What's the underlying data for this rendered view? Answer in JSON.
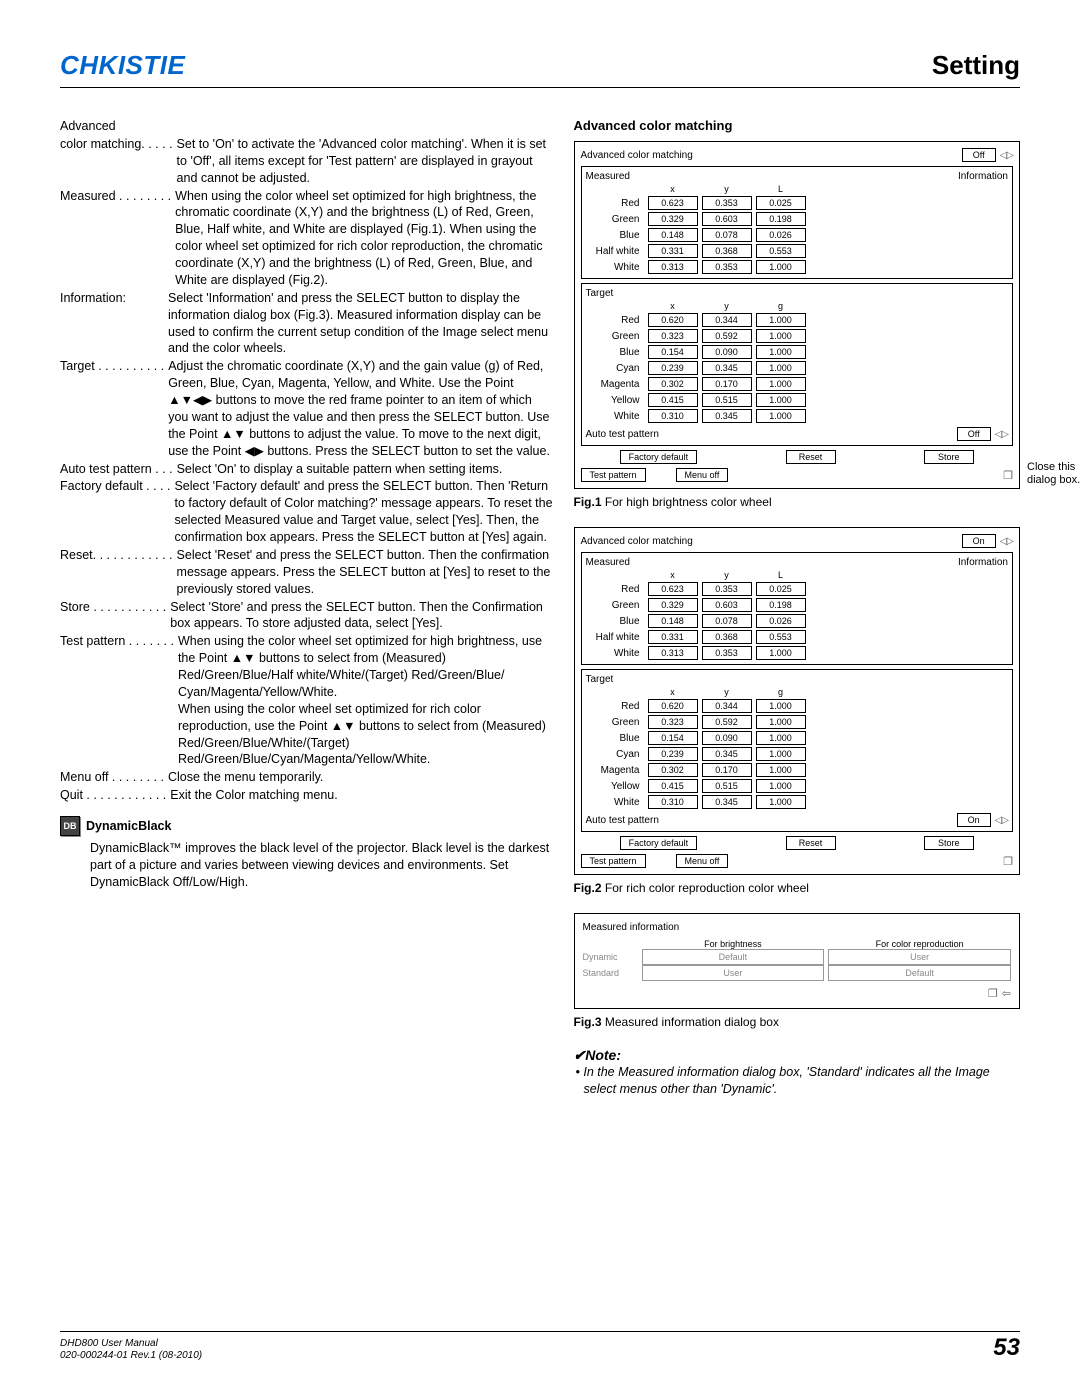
{
  "header": {
    "logo": "CHKISTIE",
    "title": "Setting"
  },
  "definitions": [
    {
      "term": "Advanced",
      "dots": "",
      "body": ""
    },
    {
      "term": "color matching",
      "dots": ". . . . .",
      "body": "Set to 'On' to activate the 'Advanced color matching'. When it is set to 'Off', all items except for 'Test pattern' are displayed in grayout and cannot be adjusted."
    },
    {
      "term": "Measured",
      "dots": " . . . . . . . .",
      "body": "When using the color wheel set optimized for high brightness, the chromatic coordinate (X,Y) and the brightness (L) of Red, Green, Blue, Half white, and White are displayed (Fig.1). When using the color wheel set optimized for rich color reproduction, the chromatic coordinate (X,Y) and the brightness (L) of Red, Green, Blue, and White are displayed (Fig.2)."
    },
    {
      "term": "Information:",
      "dots": "",
      "body": "Select 'Information' and press the SELECT button to display the information dialog box (Fig.3). Measured information display can be used to confirm the current setup condition of the Image select menu and the color wheels."
    },
    {
      "term": "Target",
      "dots": " . . . . . . . . . .",
      "body": "Adjust the chromatic coordinate (X,Y) and the gain value (g) of Red, Green, Blue, Cyan, Magenta, Yellow, and White. Use the Point ▲▼◀▶ buttons to move the red frame pointer to an item of which you want to adjust the value and then press the SELECT button. Use the Point ▲▼ buttons to adjust the value. To move to the next digit, use the Point ◀▶ buttons. Press the SELECT button to set the value."
    },
    {
      "term": "Auto test pattern",
      "dots": " . . .",
      "body": "Select 'On' to display a suitable pattern when setting items."
    },
    {
      "term": "Factory default",
      "dots": " . . . .",
      "body": "Select 'Factory default' and press the SELECT button. Then 'Return to factory default of Color matching?' message appears. To reset the selected Measured value and Target value, select [Yes]. Then, the confirmation box appears. Press the SELECT button at [Yes] again."
    },
    {
      "term": "Reset",
      "dots": ". . . . . . . . . . . .",
      "body": "Select 'Reset' and press the SELECT button. Then the confirmation message appears. Press the SELECT button at [Yes]  to reset to the previously stored values."
    },
    {
      "term": "Store",
      "dots": " . . . . . . . . . . .",
      "body": "Select 'Store' and press the SELECT button. Then the Confirmation box appears. To store adjusted data, select [Yes]."
    },
    {
      "term": "Test pattern",
      "dots": " . . . . . . .",
      "body": "When using the color wheel set optimized for high brightness, use the Point ▲▼ buttons to select from (Measured) Red/Green/Blue/Half white/White/(Target) Red/Green/Blue/ Cyan/Magenta/Yellow/White.\nWhen using the color wheel set optimized for rich color reproduction, use the Point ▲▼ buttons to select from (Measured) Red/Green/Blue/White/(Target) Red/Green/Blue/Cyan/Magenta/Yellow/White."
    },
    {
      "term": "Menu off",
      "dots": "  . . . . . . . .",
      "body": "Close the menu temporarily."
    },
    {
      "term": "Quit",
      "dots": " . . . . . . . . . . . .",
      "body": "Exit the Color matching menu."
    }
  ],
  "dynamicblack": {
    "icon_text": "DB",
    "heading": "DynamicBlack",
    "body": "DynamicBlack™ improves the black level of the projector. Black level is the darkest part of a picture and varies between viewing devices and environments. Set DynamicBlack Off/Low/High."
  },
  "right": {
    "heading": "Advanced color matching",
    "panel_title": "Advanced color matching",
    "info_label": "Information",
    "measured_label": "Measured",
    "target_label": "Target",
    "col_xyL": [
      "x",
      "y",
      "L"
    ],
    "col_xyg": [
      "x",
      "y",
      "g"
    ],
    "measured_rows": [
      {
        "name": "Red",
        "v": [
          "0.623",
          "0.353",
          "0.025"
        ]
      },
      {
        "name": "Green",
        "v": [
          "0.329",
          "0.603",
          "0.198"
        ]
      },
      {
        "name": "Blue",
        "v": [
          "0.148",
          "0.078",
          "0.026"
        ]
      },
      {
        "name": "Half white",
        "v": [
          "0.331",
          "0.368",
          "0.553"
        ]
      },
      {
        "name": "White",
        "v": [
          "0.313",
          "0.353",
          "1.000"
        ]
      }
    ],
    "target_rows": [
      {
        "name": "Red",
        "v": [
          "0.620",
          "0.344",
          "1.000"
        ]
      },
      {
        "name": "Green",
        "v": [
          "0.323",
          "0.592",
          "1.000"
        ]
      },
      {
        "name": "Blue",
        "v": [
          "0.154",
          "0.090",
          "1.000"
        ]
      },
      {
        "name": "Cyan",
        "v": [
          "0.239",
          "0.345",
          "1.000"
        ]
      },
      {
        "name": "Magenta",
        "v": [
          "0.302",
          "0.170",
          "1.000"
        ]
      },
      {
        "name": "Yellow",
        "v": [
          "0.415",
          "0.515",
          "1.000"
        ]
      },
      {
        "name": "White",
        "v": [
          "0.310",
          "0.345",
          "1.000"
        ]
      }
    ],
    "auto_test_label": "Auto test pattern",
    "off": "Off",
    "on": "On",
    "buttons": [
      "Factory default",
      "Reset",
      "Store"
    ],
    "buttons2": [
      "Test pattern",
      "Menu off"
    ],
    "close_annot": "Close this dialog box.",
    "fig1": "For high brightness color wheel",
    "fig1b": "Fig.1",
    "fig2": "For rich color reproduction color wheel",
    "fig2b": "Fig.2",
    "mi_title": "Measured information",
    "mi_cols": [
      "For brightness",
      "For color reproduction"
    ],
    "mi_rows": [
      {
        "name": "Dynamic",
        "v": [
          "Default",
          "User"
        ]
      },
      {
        "name": "Standard",
        "v": [
          "User",
          "Default"
        ]
      }
    ],
    "fig3": "Measured information dialog box",
    "fig3b": "Fig.3",
    "note_head": "✔Note:",
    "note_body": "• In the Measured information dialog box, 'Standard' indicates all the Image select menus other than 'Dynamic'."
  },
  "footer": {
    "line1": "DHD800 User Manual",
    "line2": "020-000244-01 Rev.1 (08-2010)",
    "page": "53"
  }
}
